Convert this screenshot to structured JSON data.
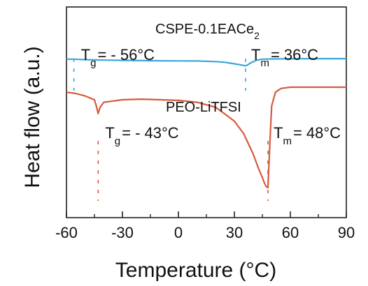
{
  "chart_data": {
    "type": "line",
    "xlabel": "Temperature (°C)",
    "ylabel": "Heat flow (a.u.)",
    "xlim": [
      -60,
      90
    ],
    "xticks": [
      "-60",
      "-30",
      "0",
      "30",
      "60",
      "90"
    ],
    "grid": false,
    "legend": "none",
    "series": [
      {
        "name": "CSPE-0.1EACe",
        "name_sub": "2",
        "color": "#3aa6d8",
        "x": [
          -60,
          -56,
          -50,
          -40,
          -30,
          -20,
          -10,
          0,
          10,
          20,
          25,
          30,
          33,
          35,
          36,
          37,
          39,
          42,
          45,
          50,
          60,
          70,
          80,
          90
        ],
        "y": [
          5.2,
          5.2,
          5.0,
          4.8,
          4.7,
          4.6,
          4.55,
          4.5,
          4.45,
          4.2,
          3.9,
          3.3,
          2.9,
          2.6,
          2.5,
          2.8,
          3.8,
          4.8,
          5.2,
          5.3,
          5.35,
          5.4,
          5.4,
          5.4
        ],
        "annotations": [
          {
            "symbol": "T",
            "sub": "g",
            "value": "= - 56°C",
            "x": -56
          },
          {
            "symbol": "T",
            "sub": "m",
            "value": "= 36°C",
            "x": 36
          }
        ]
      },
      {
        "name": "PEO-LiTFSI",
        "color": "#d65a3c",
        "x": [
          -60,
          -55,
          -50,
          -45,
          -44,
          -43,
          -42,
          -40,
          -35,
          -30,
          -20,
          -10,
          0,
          10,
          20,
          30,
          35,
          40,
          43,
          45,
          46,
          47,
          48,
          49,
          50,
          52,
          55,
          60,
          70,
          80,
          90
        ],
        "y": [
          4.6,
          4.5,
          4.3,
          4.0,
          3.5,
          2.9,
          3.4,
          3.8,
          3.9,
          4.0,
          4.05,
          4.0,
          3.95,
          3.8,
          3.4,
          2.3,
          1.3,
          -0.3,
          -1.5,
          -2.2,
          -2.6,
          -2.9,
          -3.0,
          0.5,
          3.5,
          4.6,
          4.9,
          5.0,
          5.0,
          5.0,
          5.0
        ],
        "annotations": [
          {
            "symbol": "T",
            "sub": "g",
            "value": "= - 43°C",
            "x": -43
          },
          {
            "symbol": "T",
            "sub": "m",
            "value": "= 48°C",
            "x": 48
          }
        ]
      }
    ]
  }
}
